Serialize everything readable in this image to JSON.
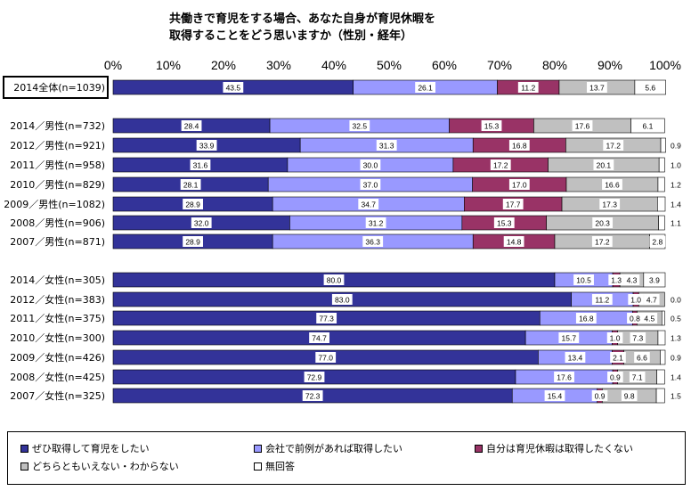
{
  "title": {
    "line1": "共働きで育児をする場合、あなた自身が育児休暇を",
    "line2": "取得することをどう思いますか（性別・経年）"
  },
  "chart_data": {
    "type": "bar",
    "stacked": "percent",
    "orientation": "horizontal",
    "xlim": [
      0,
      100
    ],
    "x_ticks": [
      "0%",
      "10%",
      "20%",
      "30%",
      "40%",
      "50%",
      "60%",
      "70%",
      "80%",
      "90%",
      "100%"
    ],
    "categories": [
      "2014全体(n=1039)",
      "2014／男性(n=732)",
      "2012／男性(n=921)",
      "2011／男性(n=958)",
      "2010／男性(n=829)",
      "2009／男性(n=1082)",
      "2008／男性(n=906)",
      "2007／男性(n=871)",
      "2014／女性(n=305)",
      "2012／女性(n=383)",
      "2011／女性(n=375)",
      "2010／女性(n=300)",
      "2009／女性(n=426)",
      "2008／女性(n=425)",
      "2007／女性(n=325)"
    ],
    "series": [
      {
        "name": "ぜひ取得して育児をしたい",
        "color": "#333399",
        "values": [
          43.5,
          28.4,
          33.9,
          31.6,
          28.1,
          28.9,
          32.0,
          28.9,
          80.0,
          83.0,
          77.3,
          74.7,
          77.0,
          72.9,
          72.3
        ]
      },
      {
        "name": "会社で前例があれば取得したい",
        "color": "#9999ff",
        "values": [
          26.1,
          32.5,
          31.3,
          30.0,
          37.0,
          34.7,
          31.2,
          36.3,
          10.5,
          11.2,
          16.8,
          15.7,
          13.4,
          17.6,
          15.4
        ]
      },
      {
        "name": "自分は育児休暇は取得したくない",
        "color": "#993366",
        "values": [
          11.2,
          15.3,
          16.8,
          17.2,
          17.0,
          17.7,
          15.3,
          14.8,
          1.3,
          1.0,
          0.8,
          1.0,
          2.1,
          0.9,
          0.9
        ]
      },
      {
        "name": "どちらともいえない・わからない",
        "color": "#c0c0c0",
        "values": [
          13.7,
          17.6,
          17.2,
          20.1,
          16.6,
          17.3,
          20.3,
          17.2,
          4.3,
          4.7,
          4.5,
          7.3,
          6.6,
          7.1,
          9.8
        ]
      },
      {
        "name": "無回答",
        "color": "#ffffff",
        "values": [
          5.6,
          6.1,
          0.9,
          1.0,
          1.2,
          1.4,
          1.1,
          2.8,
          3.9,
          0.0,
          0.5,
          1.3,
          0.9,
          1.4,
          1.5
        ]
      }
    ],
    "legend_position": "bottom",
    "grid": false
  }
}
